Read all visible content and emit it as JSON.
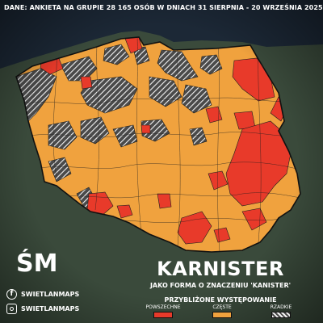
{
  "header": {
    "source_note": "DANE: ANKIETA NA GRUPIE 28 165 OSÓB W DNIACH 31 SIERPNIA - 20 WRZEŚNIA 2025"
  },
  "brand": {
    "logo_text": "ŚM",
    "facebook_handle": "SWIETLANMAPS",
    "instagram_handle": "SWIETLANMAPS"
  },
  "map": {
    "title": "KARNISTER",
    "subtitle": "JAKO FORMA O ZNACZENIU 'KANISTER'"
  },
  "legend": {
    "title": "PRZYBLIŻONE WYSTĘPOWANIE",
    "items": [
      {
        "label": "POWSZECHNE",
        "color": "#e83a2a"
      },
      {
        "label": "CZĘSTE",
        "color": "#f0a23e"
      },
      {
        "label": "RZADKIE",
        "color": "hatched"
      }
    ]
  },
  "colors": {
    "background": "#2f3a30",
    "sea": "#1c2836",
    "common": "#e83a2a",
    "frequent": "#f0a23e",
    "rare_stripe": "#f2f2f2",
    "rare_base": "#4a4a4a",
    "border": "#1e1e1e"
  }
}
